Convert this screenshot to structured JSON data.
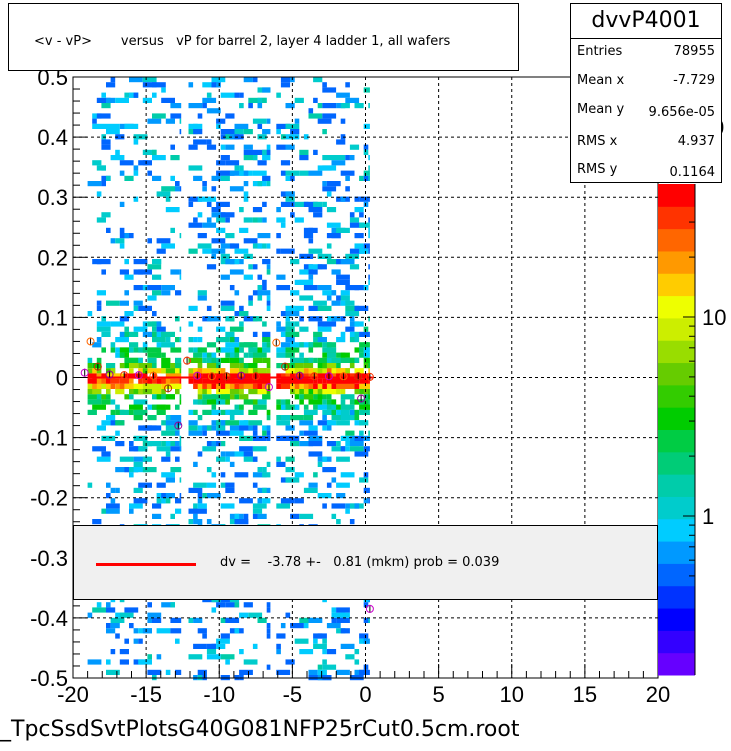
{
  "chart_data": {
    "type": "heatmap",
    "title": "<v - vP>       versus   vP for barrel 2, layer 4 ladder 1, all wafers",
    "xlim": [
      -20,
      20
    ],
    "ylim": [
      -0.5,
      0.5
    ],
    "x_ticks": [
      "-20",
      "-15",
      "-10",
      "-5",
      "0",
      "5",
      "10",
      "15",
      "20"
    ],
    "y_ticks": [
      "0.5",
      "0.4",
      "0.3",
      "0.2",
      "0.1",
      "0",
      "-0.1",
      "-0.2",
      "-0.3",
      "-0.4",
      "-0.5"
    ],
    "x_tick_values": [
      -20,
      -15,
      -10,
      -5,
      0,
      5,
      10,
      15,
      20
    ],
    "y_tick_values": [
      0.5,
      0.4,
      0.3,
      0.2,
      0.1,
      0,
      -0.1,
      -0.2,
      -0.3,
      -0.4,
      -0.5
    ],
    "grid": true,
    "colorbar": {
      "scale": "log",
      "tick_labels": [
        "1",
        "10"
      ],
      "tick_values": [
        1,
        10
      ],
      "partial_label": "0",
      "palette": [
        "#6600ff",
        "#3300ff",
        "#0000ff",
        "#0033ff",
        "#0066ff",
        "#0099ff",
        "#00ccff",
        "#00cccc",
        "#00ccaa",
        "#00cc77",
        "#00cc44",
        "#00cc00",
        "#33cc00",
        "#66cc00",
        "#99dd00",
        "#ccee00",
        "#eeff00",
        "#ffcc00",
        "#ff9900",
        "#ff6600",
        "#ff3300",
        "#ff0000"
      ]
    },
    "data_x_range": [
      -19,
      0.5
    ],
    "bands": [
      {
        "x": [
          -19,
          -12.6
        ],
        "density": "medium"
      },
      {
        "x": [
          -12.1,
          -6.5
        ],
        "density": "high"
      },
      {
        "x": [
          -6.1,
          0.3
        ],
        "density": "high"
      }
    ],
    "profile_points": [
      {
        "x": -19.2,
        "y": 0.008
      },
      {
        "x": -18.8,
        "y": 0.06
      },
      {
        "x": -18.3,
        "y": 0.018
      },
      {
        "x": -17.5,
        "y": 0.005
      },
      {
        "x": -16.5,
        "y": 0.004
      },
      {
        "x": -15.5,
        "y": 0.004
      },
      {
        "x": -14.5,
        "y": 0.003
      },
      {
        "x": -13.5,
        "y": -0.018
      },
      {
        "x": -12.8,
        "y": -0.08
      },
      {
        "x": -12.2,
        "y": 0.028
      },
      {
        "x": -11.5,
        "y": 0.003
      },
      {
        "x": -10.5,
        "y": 0.002
      },
      {
        "x": -9.5,
        "y": 0.002
      },
      {
        "x": -8.5,
        "y": 0.003
      },
      {
        "x": -7.5,
        "y": 0.002
      },
      {
        "x": -6.6,
        "y": -0.016
      },
      {
        "x": -6.1,
        "y": 0.058
      },
      {
        "x": -5.5,
        "y": 0.018
      },
      {
        "x": -4.5,
        "y": 0.003
      },
      {
        "x": -3.5,
        "y": 0.002
      },
      {
        "x": -2.5,
        "y": 0.002
      },
      {
        "x": -1.5,
        "y": 0.002
      },
      {
        "x": -0.5,
        "y": 0.002
      },
      {
        "x": -0.3,
        "y": -0.035
      },
      {
        "x": 0.3,
        "y": 0.001
      },
      {
        "x": 0.3,
        "y": -0.385
      }
    ],
    "fit": {
      "label": "dv =    -3.78 +-   0.81 (mkm) prob = 0.039",
      "color": "#ff0000"
    }
  },
  "stats": {
    "name": "dvvP4001",
    "rows": [
      {
        "key": "Entries",
        "value": "78955"
      },
      {
        "key": "Mean x",
        "value": "-7.729"
      },
      {
        "key": "Mean y",
        "value": "9.656e-05"
      },
      {
        "key": "RMS x",
        "value": "4.937"
      },
      {
        "key": "RMS y",
        "value": "0.1164"
      }
    ]
  },
  "footer": "_TpcSsdSvtPlotsG40G081NFP25rCut0.5cm.root"
}
